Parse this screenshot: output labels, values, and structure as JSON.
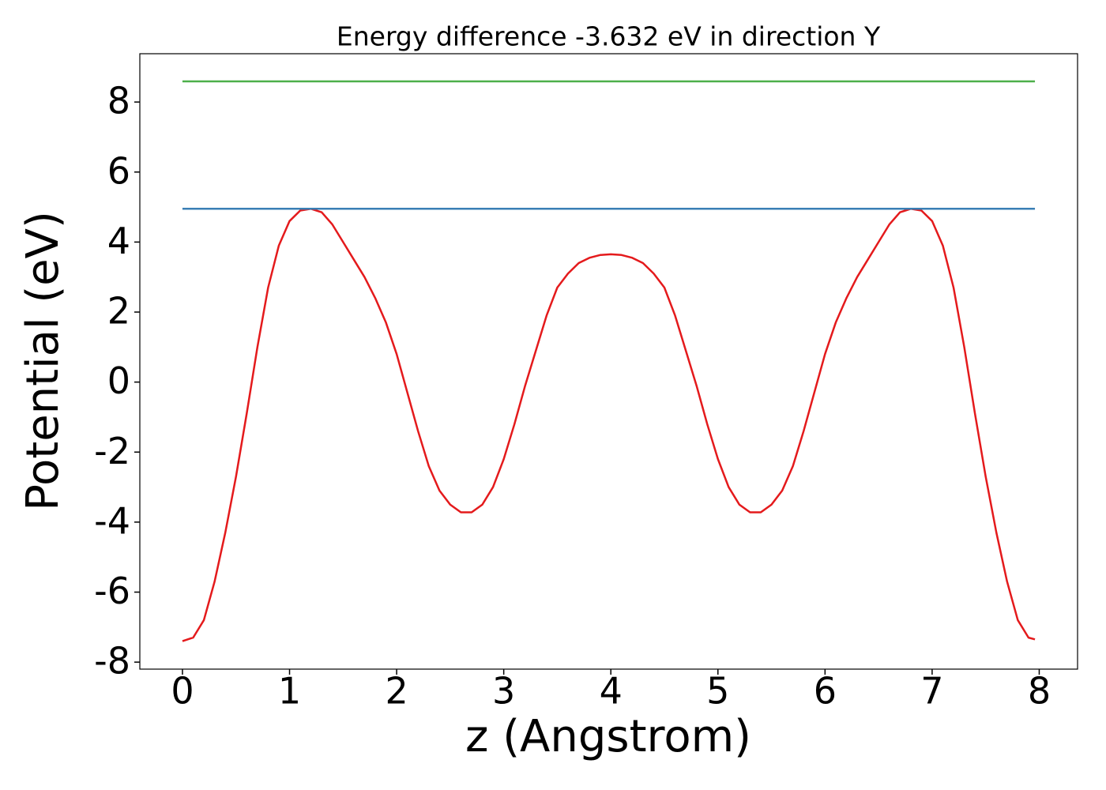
{
  "chart_data": {
    "type": "line",
    "title": "Energy difference -3.632 eV in direction Y",
    "x_label": "z (Angstrom)",
    "y_label": "Potential (eV)",
    "xlim": [
      -0.398,
      8.358
    ],
    "ylim": [
      -8.2,
      9.38
    ],
    "xticks": [
      0,
      1,
      2,
      3,
      4,
      5,
      6,
      7,
      8
    ],
    "yticks": [
      -8,
      -6,
      -4,
      -2,
      0,
      2,
      4,
      6,
      8
    ],
    "grid": false,
    "series": [
      {
        "color": "#e41a1c",
        "x": [
          0,
          0.1,
          0.2,
          0.3,
          0.4,
          0.5,
          0.6,
          0.7,
          0.8,
          0.9,
          1.0,
          1.1,
          1.2,
          1.3,
          1.4,
          1.5,
          1.6,
          1.7,
          1.8,
          1.9,
          2.0,
          2.1,
          2.2,
          2.3,
          2.4,
          2.5,
          2.6,
          2.7,
          2.8,
          2.9,
          3.0,
          3.1,
          3.2,
          3.3,
          3.4,
          3.5,
          3.6,
          3.7,
          3.8,
          3.9,
          4.0,
          4.1,
          4.2,
          4.3,
          4.4,
          4.5,
          4.6,
          4.7,
          4.8,
          4.9,
          5.0,
          5.1,
          5.2,
          5.3,
          5.4,
          5.5,
          5.6,
          5.7,
          5.8,
          5.9,
          6.0,
          6.1,
          6.2,
          6.3,
          6.4,
          6.5,
          6.6,
          6.7,
          6.8,
          6.9,
          7.0,
          7.1,
          7.2,
          7.3,
          7.4,
          7.5,
          7.6,
          7.7,
          7.8,
          7.9,
          7.96
        ],
        "values": [
          -7.4,
          -7.3,
          -6.8,
          -5.7,
          -4.3,
          -2.7,
          -0.9,
          1.0,
          2.7,
          3.9,
          4.6,
          4.9,
          4.95,
          4.85,
          4.5,
          4.0,
          3.5,
          3.0,
          2.4,
          1.7,
          0.8,
          -0.3,
          -1.4,
          -2.4,
          -3.1,
          -3.5,
          -3.72,
          -3.72,
          -3.5,
          -3.0,
          -2.2,
          -1.2,
          -0.1,
          0.9,
          1.9,
          2.7,
          3.1,
          3.4,
          3.55,
          3.63,
          3.65,
          3.63,
          3.55,
          3.4,
          3.1,
          2.7,
          1.9,
          0.9,
          -0.1,
          -1.2,
          -2.2,
          -3.0,
          -3.5,
          -3.72,
          -3.72,
          -3.5,
          -3.1,
          -2.4,
          -1.4,
          -0.3,
          0.8,
          1.7,
          2.4,
          3.0,
          3.5,
          4.0,
          4.5,
          4.85,
          4.95,
          4.9,
          4.6,
          3.9,
          2.7,
          1.0,
          -0.9,
          -2.7,
          -4.3,
          -5.7,
          -6.8,
          -7.3,
          -7.35
        ]
      },
      {
        "color": "#3a7fb5",
        "x": [
          0,
          7.96
        ],
        "values": [
          4.95,
          4.95
        ]
      },
      {
        "color": "#4daf4a",
        "x": [
          0,
          7.96
        ],
        "values": [
          8.59,
          8.59
        ]
      }
    ]
  }
}
